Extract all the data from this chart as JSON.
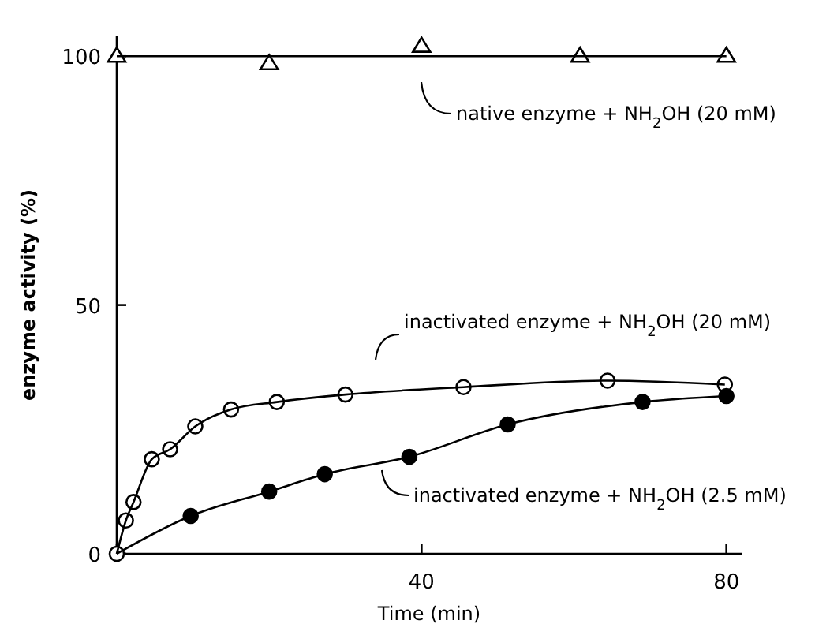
{
  "chart_data": {
    "type": "line",
    "xlabel": "Time (min)",
    "ylabel": "enzyme activity (%)",
    "xlim": [
      0,
      82
    ],
    "ylim": [
      0,
      104
    ],
    "xticks": [
      {
        "value": 0,
        "label": null
      },
      40,
      80
    ],
    "yticks": [
      0,
      50,
      100
    ],
    "grid": false,
    "line_style": "solid",
    "series": [
      {
        "type": "scatter",
        "marker": "triangle",
        "color": "#ffffff",
        "x": [
          0,
          20,
          40,
          60.8,
          80
        ],
        "values": [
          100,
          98.5,
          102,
          100,
          100
        ]
      },
      {
        "marker": "none",
        "color": "#000000",
        "x": [
          0,
          80
        ],
        "values": [
          100,
          100
        ]
      },
      {
        "type": "scatter",
        "marker": "circle",
        "color": "#ffffff",
        "x": [
          0,
          1.2,
          2.2,
          4.6,
          7,
          10.3,
          15,
          21,
          30,
          45.5,
          64.4,
          79.8
        ],
        "values": [
          0,
          6.7,
          10.4,
          19,
          21,
          25.6,
          29,
          30.5,
          32,
          33.5,
          34.8,
          34
        ]
      },
      {
        "marker": "none",
        "color": "#000000",
        "x": [
          0,
          1.2,
          2.2,
          4.6,
          7,
          10.3,
          15,
          21,
          30,
          45.5,
          64.4,
          79.8
        ],
        "values": [
          0,
          6.7,
          10.4,
          19,
          21,
          25.6,
          29,
          30.5,
          32,
          33.5,
          34.8,
          34
        ]
      },
      {
        "type": "scatter",
        "marker": "circle",
        "color": "#000000",
        "x": [
          9.7,
          20,
          27.3,
          38.4,
          51.3,
          69,
          80
        ],
        "values": [
          7.6,
          12.5,
          16,
          19.5,
          26,
          30.5,
          31.7
        ]
      },
      {
        "marker": "none",
        "color": "#000000",
        "x": [
          0,
          9.7,
          20,
          27.3,
          38.4,
          51.3,
          69,
          80
        ],
        "values": [
          0,
          7.6,
          12.5,
          16,
          19.5,
          26,
          30.5,
          31.7
        ]
      }
    ],
    "annotations": [
      "native enzyme + NH$_{2}$OH (20 mM)",
      "inactivated enzyme + NH$_{2}$OH (20 mM)",
      "inactivated enzyme + NH$_{2}$OH (2.5 mM)"
    ]
  }
}
